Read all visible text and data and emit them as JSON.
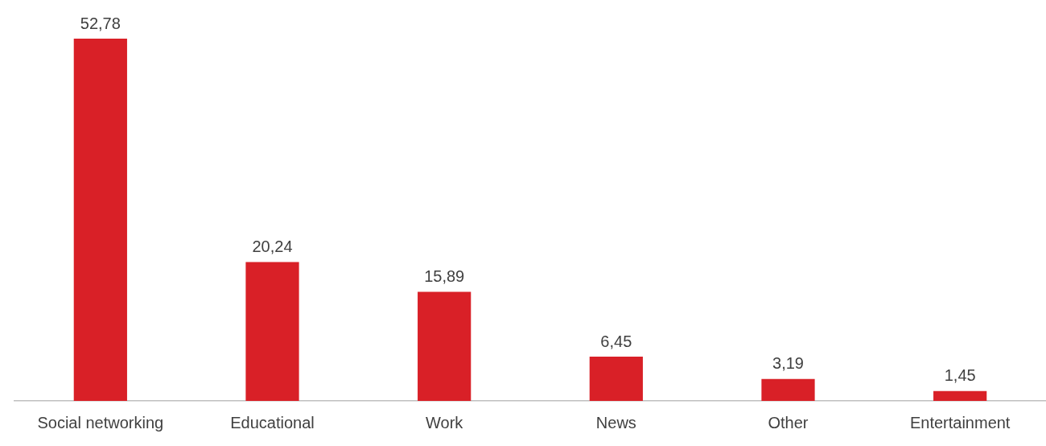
{
  "chart_data": {
    "type": "bar",
    "categories": [
      "Social networking",
      "Educational",
      "Work",
      "News",
      "Other",
      "Entertainment"
    ],
    "values": [
      52.78,
      20.24,
      15.89,
      6.45,
      3.19,
      1.45
    ],
    "value_labels": [
      "52,78",
      "20,24",
      "15,89",
      "6,45",
      "3,19",
      "1,45"
    ],
    "color": "#d92027",
    "grid": false,
    "legend": false,
    "tick_labels": "x"
  }
}
